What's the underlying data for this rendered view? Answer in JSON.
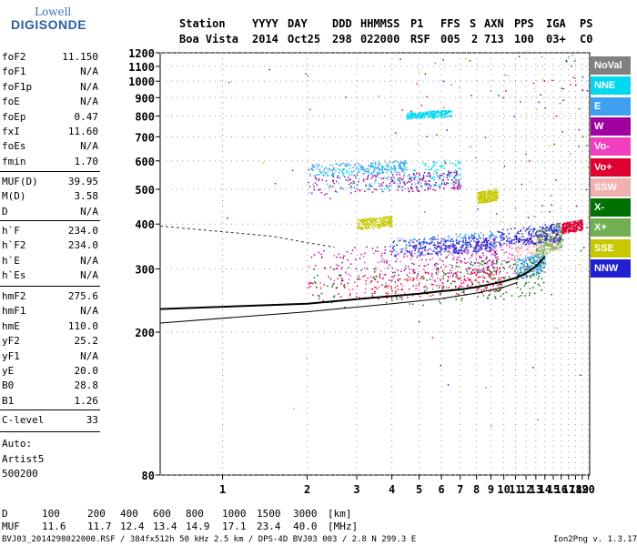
{
  "logo": {
    "line1": "Lowell",
    "line2": "DIGISONDE"
  },
  "header": {
    "row1": [
      "Station",
      "YYYY",
      "DAY",
      "DDD",
      "HHMMSS",
      "P1",
      "FFS",
      "S",
      "AXN",
      "PPS",
      "IGA",
      "PS"
    ],
    "row2": [
      "Boa Vista",
      "2014",
      "Oct25",
      "298",
      "022000",
      "RSF",
      "005",
      "2",
      "713",
      "100",
      "03+",
      "C0"
    ]
  },
  "params": {
    "group1": [
      {
        "name": "foF2",
        "value": "11.150"
      },
      {
        "name": "foF1",
        "value": "N/A"
      },
      {
        "name": "foF1p",
        "value": "N/A"
      },
      {
        "name": "foE",
        "value": "N/A"
      },
      {
        "name": "foEp",
        "value": "0.47"
      },
      {
        "name": "fxI",
        "value": "11.60"
      },
      {
        "name": "foEs",
        "value": "N/A"
      },
      {
        "name": "fmin",
        "value": "1.70"
      }
    ],
    "group2": [
      {
        "name": "MUF(D)",
        "value": "39.95"
      },
      {
        "name": "M(D)",
        "value": "3.58"
      },
      {
        "name": "D",
        "value": "N/A"
      }
    ],
    "group3": [
      {
        "name": "h`F",
        "value": "234.0"
      },
      {
        "name": "h`F2",
        "value": "234.0"
      },
      {
        "name": "h`E",
        "value": "N/A"
      },
      {
        "name": "h`Es",
        "value": "N/A"
      }
    ],
    "group4": [
      {
        "name": "hmF2",
        "value": "275.6"
      },
      {
        "name": "hmF1",
        "value": "N/A"
      },
      {
        "name": "hmE",
        "value": "110.0"
      },
      {
        "name": "yF2",
        "value": "25.2"
      },
      {
        "name": "yF1",
        "value": "N/A"
      },
      {
        "name": "yE",
        "value": "20.0"
      },
      {
        "name": "B0",
        "value": "28.8"
      },
      {
        "name": "B1",
        "value": "1.26"
      }
    ],
    "group5": [
      {
        "name": "C-level",
        "value": "33"
      }
    ]
  },
  "auto": {
    "line1": "Auto:",
    "line2": "Artist5",
    "line3": "500200"
  },
  "legend": [
    {
      "label": "NoVal",
      "color": "#808080"
    },
    {
      "label": "NNE",
      "color": "#00d8f0"
    },
    {
      "label": "E",
      "color": "#40a0f0"
    },
    {
      "label": "W",
      "color": "#a000a0"
    },
    {
      "label": "Vo-",
      "color": "#f040c0"
    },
    {
      "label": "Vo+",
      "color": "#e00030"
    },
    {
      "label": "SSW",
      "color": "#f0b0b0"
    },
    {
      "label": "X-",
      "color": "#007000"
    },
    {
      "label": "X+",
      "color": "#70b050"
    },
    {
      "label": "SSE",
      "color": "#c8c800"
    },
    {
      "label": "NNW",
      "color": "#2020d0"
    }
  ],
  "footer": {
    "d_label": "D",
    "d_values": [
      "100",
      "200",
      "400",
      "600",
      "800",
      "1000",
      "1500",
      "3000",
      "[km]"
    ],
    "muf_label": "MUF",
    "muf_values": [
      "11.6",
      "11.7",
      "12.4",
      "13.4",
      "14.9",
      "17.1",
      "23.4",
      "40.0",
      "[MHz]"
    ],
    "file_info": "BVJ03_2014298022000.RSF / 384fx512h 50 kHz 2.5 km / DPS-4D BVJ03 003 / 2.8 N 299.3 E",
    "version": "Ion2Png v. 1.3.17"
  },
  "chart_data": {
    "type": "scatter",
    "title": "",
    "xlabel": "",
    "ylabel": "",
    "xlim": [
      0.6,
      20.2
    ],
    "ylim": [
      80,
      1200
    ],
    "x_ticks": [
      "1",
      "2",
      "3",
      "4",
      "5",
      "6",
      "7",
      "8",
      "9",
      "10",
      "11",
      "12",
      "13",
      "14",
      "15",
      "16",
      "17",
      "18",
      "19",
      "20"
    ],
    "y_ticks": [
      "80",
      "200",
      "300",
      "400",
      "500",
      "600",
      "700",
      "800",
      "900",
      "1000",
      "1100",
      "1200"
    ],
    "grid": true,
    "scale": "log",
    "series": [
      {
        "name": "E",
        "color": "#40a0f0",
        "clusters": [
          {
            "x": [
              11.0,
              14.0
            ],
            "y": [
              285,
              330
            ]
          },
          {
            "x": [
              4.0,
              9.5
            ],
            "y": [
              330,
              380
            ]
          },
          {
            "x": [
              2.0,
              4.5
            ],
            "y": [
              550,
              600
            ]
          }
        ]
      },
      {
        "name": "NNE",
        "color": "#00d8f0",
        "clusters": [
          {
            "x": [
              2.0,
              7.0
            ],
            "y": [
              500,
              600
            ]
          },
          {
            "x": [
              4.5,
              6.5
            ],
            "y": [
              790,
              830
            ]
          }
        ]
      },
      {
        "name": "W",
        "color": "#a000a0",
        "clusters": [
          {
            "x": [
              2.0,
              9.5
            ],
            "y": [
              280,
              360
            ]
          },
          {
            "x": [
              2.0,
              7.0
            ],
            "y": [
              490,
              560
            ]
          }
        ]
      },
      {
        "name": "Vo-",
        "color": "#f040c0",
        "clusters": [
          {
            "x": [
              2.0,
              11.0
            ],
            "y": [
              260,
              350
            ]
          }
        ]
      },
      {
        "name": "Vo+",
        "color": "#e00030",
        "clusters": [
          {
            "x": [
              16.0,
              19.0
            ],
            "y": [
              380,
              410
            ]
          },
          {
            "x": [
              2.0,
              10.0
            ],
            "y": [
              250,
              300
            ]
          }
        ]
      },
      {
        "name": "SSW",
        "color": "#f0b0b0",
        "clusters": [
          {
            "x": [
              11.0,
              16.0
            ],
            "y": [
              330,
              380
            ]
          }
        ]
      },
      {
        "name": "X-",
        "color": "#007000",
        "clusters": [
          {
            "x": [
              2.0,
              14.0
            ],
            "y": [
              240,
              320
            ]
          }
        ]
      },
      {
        "name": "X+",
        "color": "#70b050",
        "clusters": [
          {
            "x": [
              13.0,
              16.0
            ],
            "y": [
              330,
              400
            ]
          }
        ]
      },
      {
        "name": "SSE",
        "color": "#c8c800",
        "clusters": [
          {
            "x": [
              3.0,
              4.0
            ],
            "y": [
              390,
              420
            ]
          },
          {
            "x": [
              8.0,
              9.5
            ],
            "y": [
              460,
              500
            ]
          }
        ]
      },
      {
        "name": "NNW",
        "color": "#2020d0",
        "clusters": [
          {
            "x": [
              9.5,
              16.0
            ],
            "y": [
              350,
              400
            ]
          },
          {
            "x": [
              4.0,
              9.0
            ],
            "y": [
              330,
              370
            ]
          }
        ]
      }
    ],
    "curves": [
      {
        "name": "profile",
        "x": [
          0.6,
          2,
          3,
          4,
          5,
          6,
          7,
          8,
          9,
          10,
          11,
          12,
          13,
          14
        ],
        "y": [
          232,
          240,
          247,
          252,
          256,
          260,
          263,
          267,
          272,
          277,
          283,
          292,
          305,
          325
        ]
      },
      {
        "name": "trace-lower",
        "x": [
          0.6,
          2,
          4,
          6,
          8,
          10,
          11.2
        ],
        "y": [
          212,
          228,
          240,
          248,
          257,
          267,
          275
        ]
      },
      {
        "name": "dashed",
        "x": [
          0.6,
          1.5,
          2.0,
          2.5
        ],
        "y": [
          395,
          370,
          355,
          345
        ]
      }
    ]
  }
}
